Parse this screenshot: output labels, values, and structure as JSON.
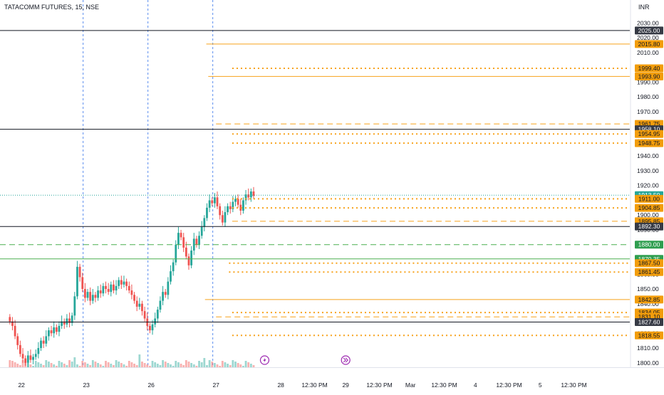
{
  "header": {
    "symbol_line": "TATACOMM FUTURES, 15, NSE",
    "currency": "INR"
  },
  "colors": {
    "up": "#26a69a",
    "down": "#ef5350",
    "orange": "#f7a21b",
    "orange_label": "#f29d0c",
    "black_line": "#131722",
    "dark_label": "#363a45",
    "green_line": "#4caf50",
    "green_label": "#2e9e4f",
    "last_price_label": "#26a69a",
    "vline": "#5b8def",
    "axis_text": "#131722",
    "event_icon": "#9c27b0"
  },
  "chart_data": {
    "type": "candlestick",
    "title": "TATACOMM FUTURES, 15, NSE",
    "ylim": [
      1797,
      2036
    ],
    "y_ticks": [
      1800,
      1810,
      1820,
      1830,
      1840,
      1850,
      1860,
      1870,
      1880,
      1890,
      1900,
      1910,
      1920,
      1930,
      1940,
      1950,
      1960,
      1970,
      1980,
      1990,
      2000,
      2010,
      2020,
      2030
    ],
    "x_labels": [
      {
        "text": "22",
        "pos": 0.2
      },
      {
        "text": "23",
        "pos": 1.2
      },
      {
        "text": "26",
        "pos": 2.2
      },
      {
        "text": "27",
        "pos": 3.2
      },
      {
        "text": "28",
        "pos": 4.2
      },
      {
        "text": "12:30 PM",
        "pos": 4.72
      },
      {
        "text": "29",
        "pos": 5.2
      },
      {
        "text": "12:30 PM",
        "pos": 5.72
      },
      {
        "text": "Mar",
        "pos": 6.2
      },
      {
        "text": "12:30 PM",
        "pos": 6.72
      },
      {
        "text": "4",
        "pos": 7.2
      },
      {
        "text": "12:30 PM",
        "pos": 7.72
      },
      {
        "text": "5",
        "pos": 8.2
      },
      {
        "text": "12:30 PM",
        "pos": 8.72
      }
    ],
    "session_lines": [
      1.15,
      2.15,
      3.15
    ],
    "levels": [
      {
        "price": 2025.0,
        "label": "2025.00",
        "style": "solid",
        "color": "black",
        "start": 0
      },
      {
        "price": 2015.8,
        "label": "2015.80",
        "style": "solid",
        "color": "orange",
        "start": 3.05
      },
      {
        "price": 1999.4,
        "label": "1999.40",
        "style": "dotted",
        "color": "orange",
        "start": 3.45
      },
      {
        "price": 1993.9,
        "label": "1993.90",
        "style": "solid",
        "color": "orange",
        "start": 3.08
      },
      {
        "price": 1961.75,
        "label": "1961.75",
        "style": "dashed",
        "color": "orange",
        "start": 3.2
      },
      {
        "price": 1958.1,
        "label": "1958.10",
        "style": "solid",
        "color": "black",
        "start": 0
      },
      {
        "price": 1954.95,
        "label": "1954.95",
        "style": "dotted",
        "color": "orange",
        "start": 3.45
      },
      {
        "price": 1948.75,
        "label": "1948.75",
        "style": "dotted",
        "color": "orange",
        "start": 3.45
      },
      {
        "price": 1913.5,
        "label": "1913.50",
        "style": "last",
        "color": "last",
        "start": 0
      },
      {
        "price": 1911.0,
        "label": "1911.00",
        "style": "dotted",
        "color": "orange",
        "start": 3.45
      },
      {
        "price": 1904.85,
        "label": "1904.85",
        "style": "dotted",
        "color": "orange",
        "start": 3.45
      },
      {
        "price": 1895.85,
        "label": "1895.85",
        "style": "dashed",
        "color": "orange",
        "start": 3.45
      },
      {
        "price": 1892.3,
        "label": "1892.30",
        "style": "solid",
        "color": "black",
        "start": 0
      },
      {
        "price": 1880.0,
        "label": "1880.00",
        "style": "dashed",
        "color": "green",
        "start": 0
      },
      {
        "price": 1870.35,
        "label": "1870.35",
        "style": "solid",
        "color": "green",
        "start": 0
      },
      {
        "price": 1867.5,
        "label": "1867.50",
        "style": "dotted",
        "color": "orange",
        "start": 3.4
      },
      {
        "price": 1861.45,
        "label": "1861.45",
        "style": "dotted",
        "color": "orange",
        "start": 3.4
      },
      {
        "price": 1842.85,
        "label": "1842.85",
        "style": "solid",
        "color": "orange",
        "start": 3.03
      },
      {
        "price": 1834.05,
        "label": "1834.05",
        "style": "dotted",
        "color": "orange",
        "start": 3.45
      },
      {
        "price": 1831.1,
        "label": "1831.10",
        "style": "dashed",
        "color": "orange",
        "start": 3.2
      },
      {
        "price": 1827.6,
        "label": "1827.60",
        "style": "solid",
        "color": "black",
        "start": 0
      },
      {
        "price": 1818.55,
        "label": "1818.55",
        "style": "dotted",
        "color": "orange",
        "start": 3.45
      }
    ],
    "candles_per_day": 25,
    "closes": [
      1828,
      1825,
      1818,
      1812,
      1806,
      1803,
      1800,
      1805,
      1802,
      1804,
      1806,
      1810,
      1815,
      1813,
      1818,
      1822,
      1820,
      1824,
      1821,
      1825,
      1828,
      1826,
      1830,
      1827,
      1832,
      1845,
      1865,
      1858,
      1850,
      1844,
      1848,
      1842,
      1846,
      1844,
      1849,
      1847,
      1852,
      1850,
      1848,
      1853,
      1849,
      1852,
      1856,
      1853,
      1855,
      1852,
      1849,
      1846,
      1842,
      1838,
      1840,
      1835,
      1830,
      1825,
      1822,
      1826,
      1830,
      1836,
      1842,
      1848,
      1846,
      1855,
      1862,
      1868,
      1880,
      1888,
      1885,
      1878,
      1872,
      1866,
      1876,
      1884,
      1880,
      1886,
      1892,
      1898,
      1905,
      1910,
      1908,
      1912,
      1906,
      1900,
      1895,
      1902,
      1906,
      1904,
      1909,
      1911,
      1907,
      1903,
      1910,
      1914,
      1912,
      1916,
      1913
    ],
    "events": [
      {
        "pos": 3.95,
        "icon": "lightning-icon"
      },
      {
        "pos": 5.2,
        "icon": "double-arrow-icon"
      }
    ]
  }
}
